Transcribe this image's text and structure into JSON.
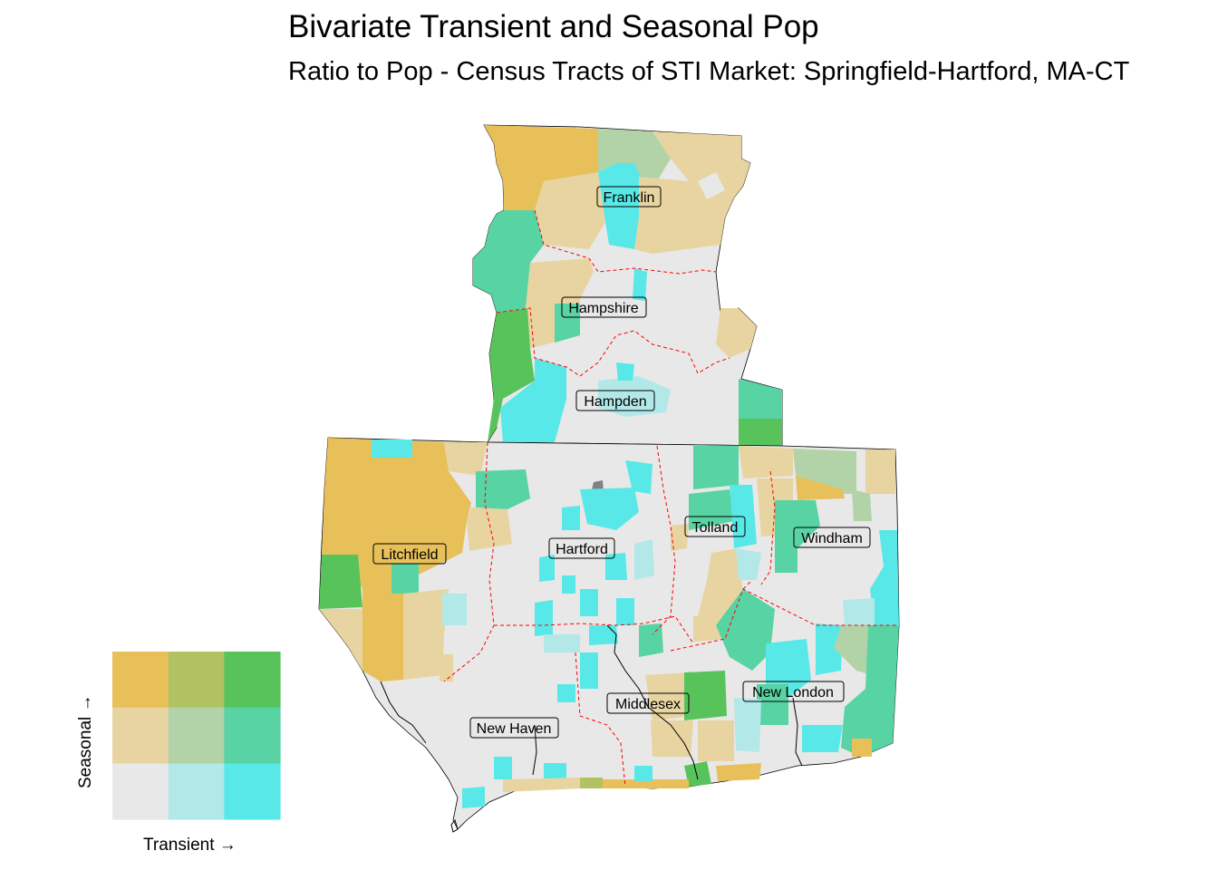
{
  "title": "Bivariate Transient and Seasonal Pop",
  "subtitle": "Ratio to Pop - Census Tracts of STI Market: Springfield-Hartford, MA-CT",
  "legend": {
    "x_label": "Transient →",
    "y_label": "Seasonal →",
    "colors": [
      [
        "#e8c05a",
        "#b2c262",
        "#58c35b"
      ],
      [
        "#e8d4a0",
        "#b2d3a8",
        "#58d3a3"
      ],
      [
        "#e8e8e8",
        "#b2e8e8",
        "#58e8e8"
      ]
    ]
  },
  "counties": [
    {
      "name": "Franklin"
    },
    {
      "name": "Hampshire"
    },
    {
      "name": "Hampden"
    },
    {
      "name": "Litchfield"
    },
    {
      "name": "Hartford"
    },
    {
      "name": "Tolland"
    },
    {
      "name": "Windham"
    },
    {
      "name": "New Haven"
    },
    {
      "name": "Middlesex"
    },
    {
      "name": "New London"
    }
  ],
  "styles": {
    "base_fill": "#e8e8e8",
    "county_border": "#ff0000",
    "coast_line": "#000000",
    "missing_fill": "#808080"
  }
}
